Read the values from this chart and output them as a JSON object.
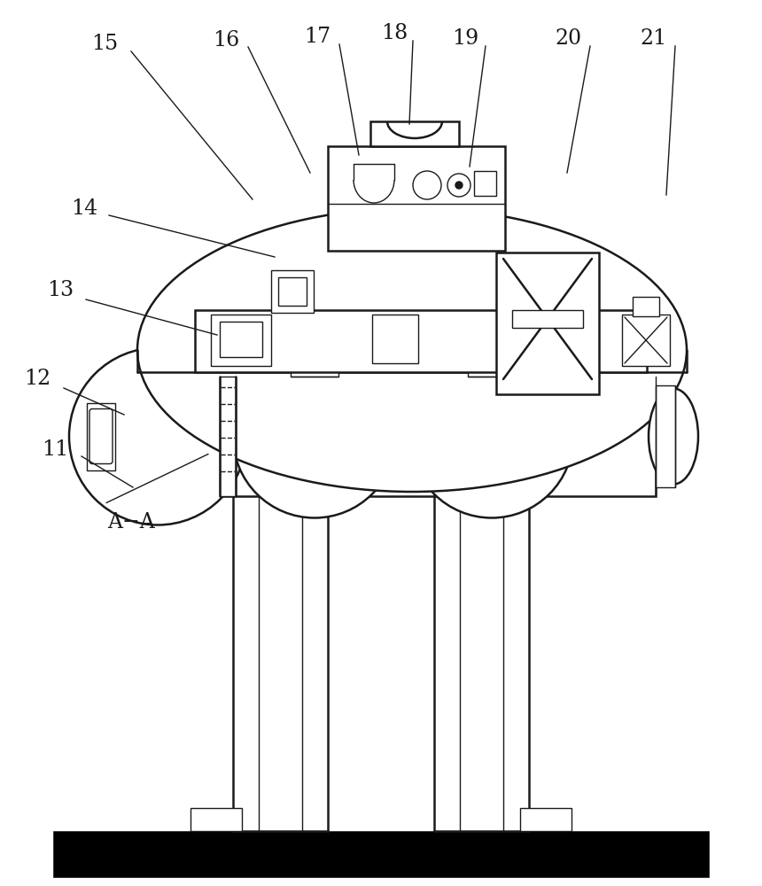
{
  "bg_color": "#ffffff",
  "line_color": "#1a1a1a",
  "lw_main": 1.8,
  "lw_thin": 1.0,
  "lw_thick": 2.2,
  "label_fontsize": 17
}
